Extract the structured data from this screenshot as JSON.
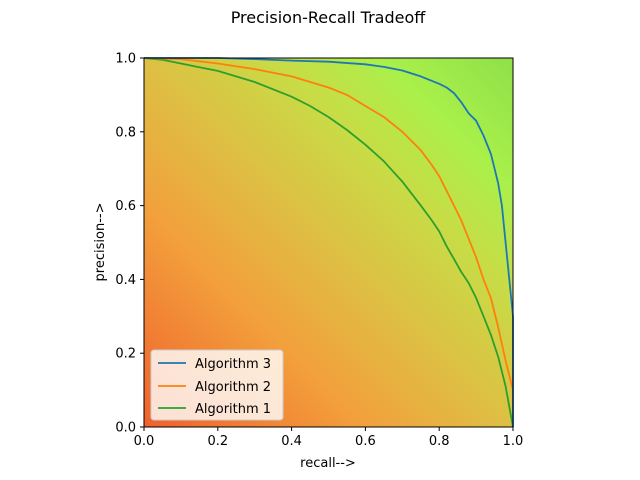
{
  "chart_data": {
    "type": "line",
    "title": "Precision-Recall Tradeoff",
    "xlabel": "recall-->",
    "ylabel": "precision-->",
    "xlim": [
      0,
      1
    ],
    "ylim": [
      0,
      1
    ],
    "xticks": [
      "0.0",
      "0.2",
      "0.4",
      "0.6",
      "0.8",
      "1.0"
    ],
    "yticks": [
      "0.0",
      "0.2",
      "0.4",
      "0.6",
      "0.8",
      "1.0"
    ],
    "legend_position": "lower-left",
    "background": "gradient from orange-red (lower-left) through yellow to green (upper-right)",
    "series": [
      {
        "name": "Algorithm 3",
        "color": "#1f77b4",
        "x": [
          0.0,
          0.1,
          0.2,
          0.3,
          0.4,
          0.5,
          0.6,
          0.65,
          0.7,
          0.75,
          0.8,
          0.82,
          0.84,
          0.86,
          0.88,
          0.9,
          0.92,
          0.94,
          0.95,
          0.96,
          0.97,
          0.98,
          0.99,
          1.0,
          1.0
        ],
        "y": [
          1.0,
          1.0,
          1.0,
          0.997,
          0.993,
          0.99,
          0.983,
          0.976,
          0.966,
          0.95,
          0.93,
          0.92,
          0.905,
          0.88,
          0.85,
          0.83,
          0.79,
          0.74,
          0.7,
          0.66,
          0.6,
          0.5,
          0.4,
          0.3,
          0.0
        ]
      },
      {
        "name": "Algorithm 2",
        "color": "#ff7f0e",
        "x": [
          0.0,
          0.1,
          0.2,
          0.3,
          0.4,
          0.5,
          0.55,
          0.6,
          0.65,
          0.7,
          0.75,
          0.78,
          0.8,
          0.82,
          0.84,
          0.86,
          0.88,
          0.9,
          0.92,
          0.94,
          0.96,
          0.98,
          1.0
        ],
        "y": [
          1.0,
          0.997,
          0.985,
          0.97,
          0.95,
          0.92,
          0.9,
          0.87,
          0.84,
          0.8,
          0.75,
          0.71,
          0.68,
          0.64,
          0.6,
          0.56,
          0.51,
          0.46,
          0.4,
          0.35,
          0.27,
          0.18,
          0.1
        ]
      },
      {
        "name": "Algorithm 1",
        "color": "#2ca02c",
        "x": [
          0.0,
          0.05,
          0.1,
          0.15,
          0.2,
          0.3,
          0.4,
          0.45,
          0.5,
          0.55,
          0.6,
          0.65,
          0.7,
          0.75,
          0.78,
          0.8,
          0.82,
          0.84,
          0.86,
          0.88,
          0.9,
          0.92,
          0.94,
          0.96,
          0.98,
          1.0
        ],
        "y": [
          1.0,
          0.995,
          0.985,
          0.975,
          0.965,
          0.935,
          0.895,
          0.87,
          0.84,
          0.805,
          0.765,
          0.72,
          0.665,
          0.6,
          0.56,
          0.53,
          0.49,
          0.455,
          0.42,
          0.39,
          0.35,
          0.3,
          0.25,
          0.19,
          0.11,
          0.0
        ]
      }
    ]
  }
}
